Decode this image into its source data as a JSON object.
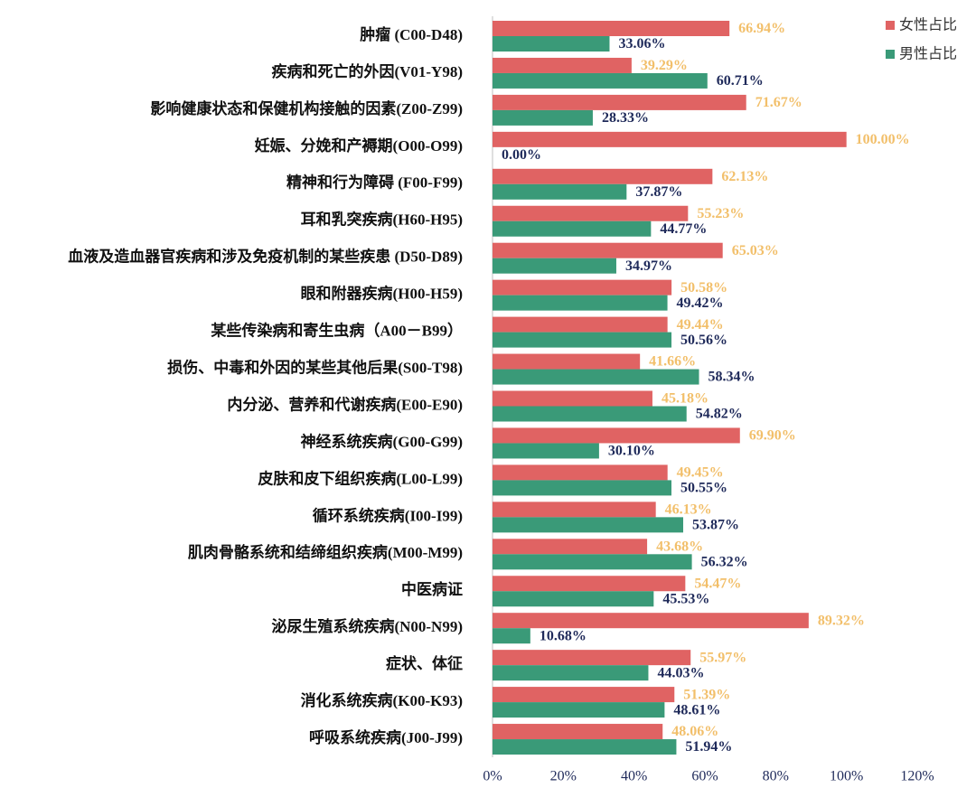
{
  "chart_data": {
    "type": "hbar",
    "categories": [
      "肿瘤 (C00-D48)",
      "疾病和死亡的外因(V01-Y98)",
      "影响健康状态和保健机构接触的因素(Z00-Z99)",
      "妊娠、分娩和产褥期(O00-O99)",
      "精神和行为障碍 (F00-F99)",
      "耳和乳突疾病(H60-H95)",
      "血液及造血器官疾病和涉及免疫机制的某些疾患 (D50-D89)",
      "眼和附器疾病(H00-H59)",
      "某些传染病和寄生虫病（A00－B99）",
      "损伤、中毒和外因的某些其他后果(S00-T98)",
      "内分泌、营养和代谢疾病(E00-E90)",
      "神经系统疾病(G00-G99)",
      "皮肤和皮下组织疾病(L00-L99)",
      "循环系统疾病(I00-I99)",
      "肌肉骨骼系统和结缔组织疾病(M00-M99)",
      "中医病证",
      "泌尿生殖系统疾病(N00-N99)",
      "症状、体征",
      "消化系统疾病(K00-K93)",
      "呼吸系统疾病(J00-J99)"
    ],
    "series": [
      {
        "name": "女性占比",
        "color": "#e06363",
        "label_color": "#f2bf6a",
        "values": [
          66.94,
          39.29,
          71.67,
          100.0,
          62.13,
          55.23,
          65.03,
          50.58,
          49.44,
          41.66,
          45.18,
          69.9,
          49.45,
          46.13,
          43.68,
          54.47,
          89.32,
          55.97,
          51.39,
          48.06
        ],
        "value_labels": [
          "66.94%",
          "39.29%",
          "71.67%",
          "100.00%",
          "62.13%",
          "55.23%",
          "65.03%",
          "50.58%",
          "49.44%",
          "41.66%",
          "45.18%",
          "69.90%",
          "49.45%",
          "46.13%",
          "43.68%",
          "54.47%",
          "89.32%",
          "55.97%",
          "51.39%",
          "48.06%"
        ]
      },
      {
        "name": "男性占比",
        "color": "#3a9a78",
        "label_color": "#1f2a5a",
        "values": [
          33.06,
          60.71,
          28.33,
          0.0,
          37.87,
          44.77,
          34.97,
          49.42,
          50.56,
          58.34,
          54.82,
          30.1,
          50.55,
          53.87,
          56.32,
          45.53,
          10.68,
          44.03,
          48.61,
          51.94
        ],
        "value_labels": [
          "33.06%",
          "60.71%",
          "28.33%",
          "0.00%",
          "37.87%",
          "44.77%",
          "34.97%",
          "49.42%",
          "50.56%",
          "58.34%",
          "54.82%",
          "30.10%",
          "50.55%",
          "53.87%",
          "56.32%",
          "45.53%",
          "10.68%",
          "44.03%",
          "48.61%",
          "51.94%"
        ]
      }
    ],
    "xlim": [
      0,
      120
    ],
    "xticks": [
      {
        "value": 0,
        "label": "0%"
      },
      {
        "value": 20,
        "label": "20%"
      },
      {
        "value": 40,
        "label": "40%"
      },
      {
        "value": 60,
        "label": "60%"
      },
      {
        "value": 80,
        "label": "80%"
      },
      {
        "value": 100,
        "label": "100%"
      },
      {
        "value": 120,
        "label": "120%"
      }
    ],
    "grid": false,
    "legend": "upper right"
  }
}
